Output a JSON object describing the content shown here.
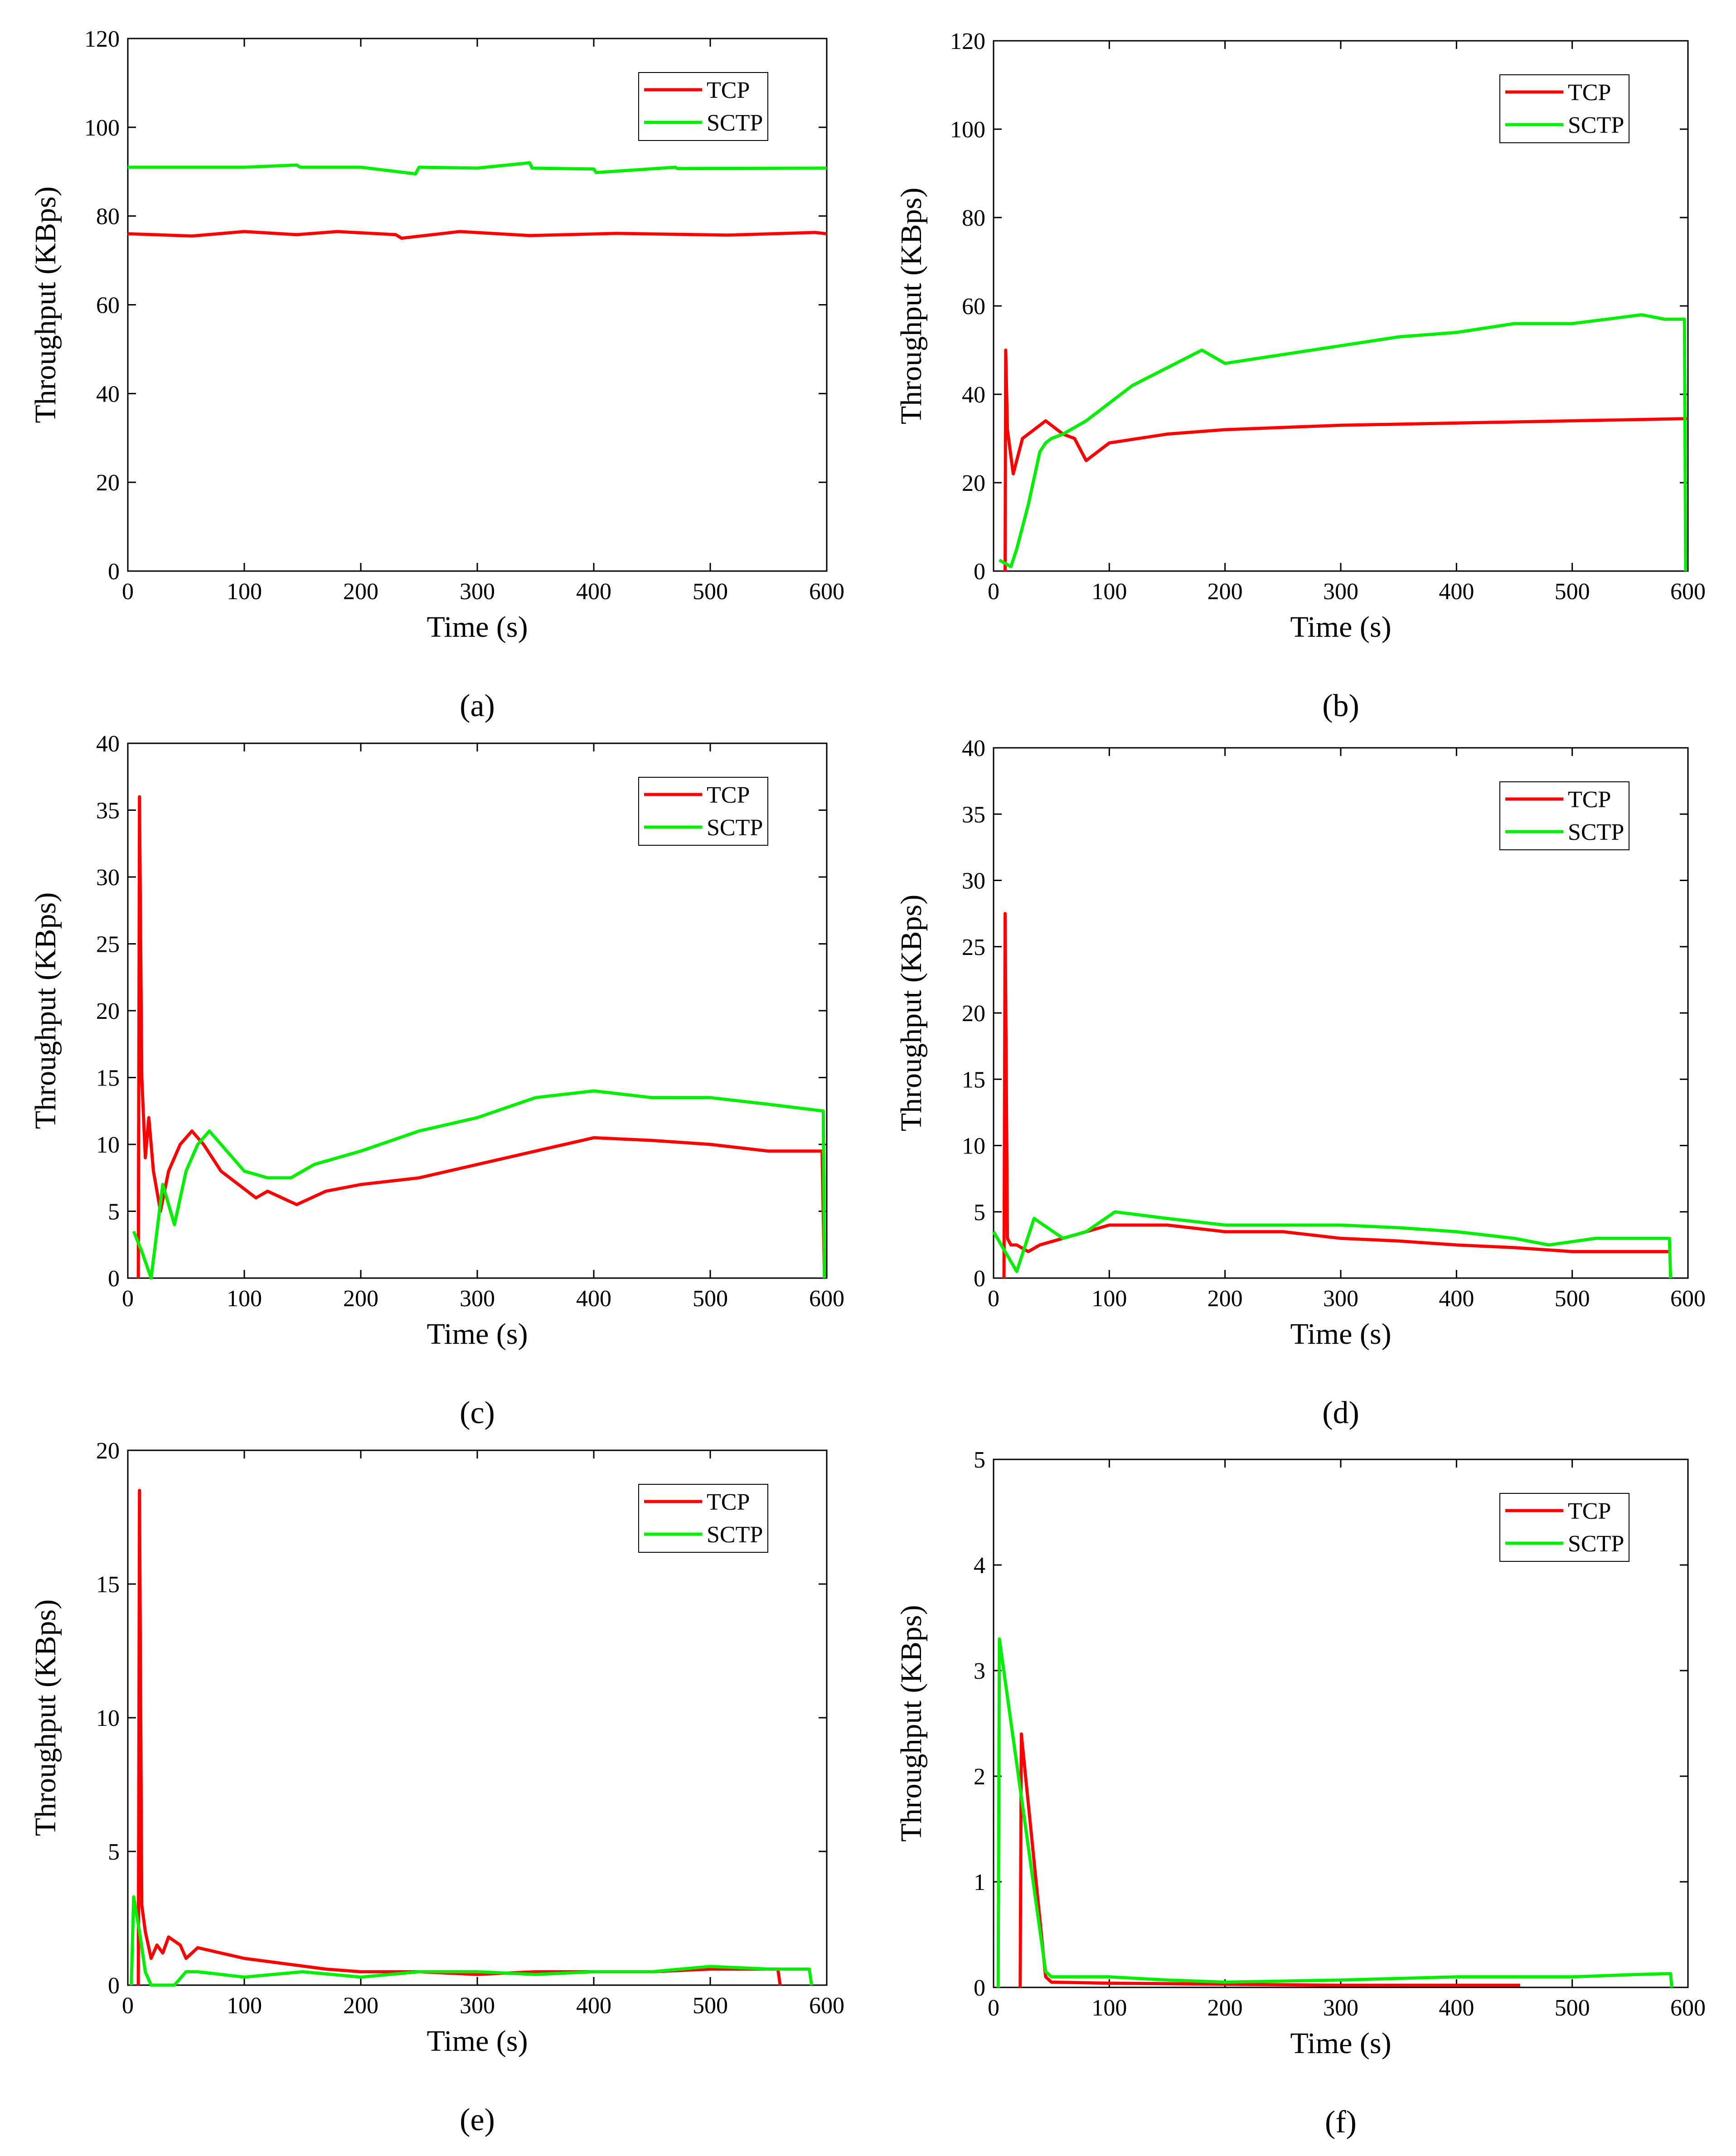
{
  "figure": {
    "colors": {
      "tcp": "#ff0000",
      "sctp": "#00ee00",
      "axis": "#000000",
      "background": "#ffffff"
    }
  },
  "chart_data": [
    {
      "type": "line",
      "panel_label": "(a)",
      "xlabel": "Time (s)",
      "ylabel": "Throughput (KBps)",
      "xlim": [
        0,
        600
      ],
      "ylim": [
        0,
        120
      ],
      "xticks": [
        0,
        100,
        200,
        300,
        400,
        500,
        600
      ],
      "yticks": [
        0,
        20,
        40,
        60,
        80,
        100,
        120
      ],
      "legend": [
        "TCP",
        "SCTP"
      ],
      "legend_position": "top-right",
      "series": [
        {
          "name": "TCP",
          "color": "#ff0000",
          "x": [
            0,
            55,
            100,
            145,
            180,
            230,
            235,
            285,
            345,
            420,
            515,
            590,
            600
          ],
          "y": [
            76,
            75.5,
            76.5,
            75.8,
            76.5,
            75.8,
            75,
            76.5,
            75.6,
            76.1,
            75.7,
            76.3,
            76
          ]
        },
        {
          "name": "SCTP",
          "color": "#00ee00",
          "x": [
            0,
            100,
            145,
            148,
            200,
            247,
            250,
            300,
            345,
            347,
            400,
            402,
            470,
            472,
            600
          ],
          "y": [
            91,
            91,
            91.5,
            91,
            91,
            89.5,
            91,
            90.8,
            92,
            90.8,
            90.6,
            89.8,
            91,
            90.7,
            90.8
          ]
        }
      ]
    },
    {
      "type": "line",
      "panel_label": "(b)",
      "xlabel": "Time (s)",
      "ylabel": "Throughput (KBps)",
      "xlim": [
        0,
        600
      ],
      "ylim": [
        0,
        120
      ],
      "xticks": [
        0,
        100,
        200,
        300,
        400,
        500,
        600
      ],
      "yticks": [
        0,
        20,
        40,
        60,
        80,
        100,
        120
      ],
      "legend": [
        "TCP",
        "SCTP"
      ],
      "legend_position": "top-right",
      "series": [
        {
          "name": "TCP",
          "color": "#ff0000",
          "x": [
            10,
            10.5,
            12,
            17,
            25,
            35,
            45,
            50,
            60,
            70,
            80,
            100,
            150,
            200,
            300,
            400,
            500,
            600
          ],
          "y": [
            0,
            50,
            32,
            22,
            30,
            32,
            34,
            33,
            31,
            30,
            25,
            29,
            31,
            32,
            33,
            33.5,
            34,
            34.5
          ]
        },
        {
          "name": "SCTP",
          "color": "#00ee00",
          "x": [
            5,
            15,
            20,
            30,
            40,
            45,
            50,
            60,
            80,
            100,
            120,
            150,
            180,
            200,
            250,
            300,
            350,
            400,
            450,
            500,
            560,
            580,
            597,
            598
          ],
          "y": [
            2.5,
            1,
            5,
            15,
            27,
            29,
            30,
            31,
            34,
            38,
            42,
            46,
            50,
            47,
            49,
            51,
            53,
            54,
            56,
            56,
            58,
            57,
            57,
            0
          ]
        }
      ]
    },
    {
      "type": "line",
      "panel_label": "(c)",
      "xlabel": "Time (s)",
      "ylabel": "Throughput (KBps)",
      "xlim": [
        0,
        600
      ],
      "ylim": [
        0,
        40
      ],
      "xticks": [
        0,
        100,
        200,
        300,
        400,
        500,
        600
      ],
      "yticks": [
        0,
        5,
        10,
        15,
        20,
        25,
        30,
        35,
        40
      ],
      "legend": [
        "TCP",
        "SCTP"
      ],
      "legend_position": "top-right",
      "series": [
        {
          "name": "TCP",
          "color": "#ff0000",
          "x": [
            9,
            10,
            12,
            15,
            18,
            22,
            28,
            35,
            45,
            55,
            65,
            80,
            110,
            120,
            145,
            170,
            200,
            250,
            300,
            350,
            400,
            450,
            500,
            550,
            596,
            598
          ],
          "y": [
            0,
            36,
            15,
            9,
            12,
            8,
            5,
            8,
            10,
            11,
            10,
            8,
            6,
            6.5,
            5.5,
            6.5,
            7,
            7.5,
            8.5,
            9.5,
            10.5,
            10.3,
            10,
            9.5,
            9.5,
            0
          ]
        },
        {
          "name": "SCTP",
          "color": "#00ee00",
          "x": [
            5,
            12,
            20,
            30,
            40,
            50,
            60,
            70,
            100,
            120,
            140,
            160,
            200,
            250,
            300,
            350,
            400,
            450,
            500,
            550,
            597,
            598
          ],
          "y": [
            3.5,
            2,
            0,
            7,
            4,
            8,
            10,
            11,
            8,
            7.5,
            7.5,
            8.5,
            9.5,
            11,
            12,
            13.5,
            14,
            13.5,
            13.5,
            13,
            12.5,
            0
          ]
        }
      ]
    },
    {
      "type": "line",
      "panel_label": "(d)",
      "xlabel": "Time (s)",
      "ylabel": "Throughput (KBps)",
      "xlim": [
        0,
        600
      ],
      "ylim": [
        0,
        40
      ],
      "xticks": [
        0,
        100,
        200,
        300,
        400,
        500,
        600
      ],
      "yticks": [
        0,
        5,
        10,
        15,
        20,
        25,
        30,
        35,
        40
      ],
      "legend": [
        "TCP",
        "SCTP"
      ],
      "legend_position": "top-right",
      "series": [
        {
          "name": "TCP",
          "color": "#ff0000",
          "x": [
            9,
            10,
            12,
            15,
            20,
            30,
            40,
            60,
            100,
            150,
            200,
            250,
            300,
            350,
            400,
            450,
            500,
            585
          ],
          "y": [
            0,
            27.5,
            3,
            2.5,
            2.5,
            2,
            2.5,
            3,
            4,
            4,
            3.5,
            3.5,
            3,
            2.8,
            2.5,
            2.3,
            2,
            2
          ]
        },
        {
          "name": "SCTP",
          "color": "#00ee00",
          "x": [
            0,
            10,
            20,
            35,
            60,
            80,
            105,
            150,
            200,
            250,
            300,
            350,
            400,
            450,
            480,
            520,
            580,
            584,
            585
          ],
          "y": [
            3.5,
            2,
            0.5,
            4.5,
            3,
            3.5,
            5,
            4.5,
            4,
            4,
            4,
            3.8,
            3.5,
            3,
            2.5,
            3,
            3,
            3,
            0
          ]
        }
      ]
    },
    {
      "type": "line",
      "panel_label": "(e)",
      "xlabel": "Time (s)",
      "ylabel": "Throughput (KBps)",
      "xlim": [
        0,
        600
      ],
      "ylim": [
        0,
        20
      ],
      "xticks": [
        0,
        100,
        200,
        300,
        400,
        500,
        600
      ],
      "yticks": [
        0,
        5,
        10,
        15,
        20
      ],
      "legend": [
        "TCP",
        "SCTP"
      ],
      "legend_position": "top-right",
      "series": [
        {
          "name": "TCP",
          "color": "#ff0000",
          "x": [
            9,
            10,
            12,
            15,
            20,
            25,
            30,
            35,
            45,
            50,
            60,
            100,
            170,
            200,
            250,
            300,
            350,
            400,
            450,
            500,
            558,
            560
          ],
          "y": [
            0,
            18.5,
            3,
            2,
            1,
            1.5,
            1.2,
            1.8,
            1.5,
            1,
            1.4,
            1,
            0.6,
            0.5,
            0.5,
            0.4,
            0.5,
            0.5,
            0.5,
            0.6,
            0.6,
            0
          ]
        },
        {
          "name": "SCTP",
          "color": "#00ee00",
          "x": [
            3,
            5,
            10,
            15,
            20,
            30,
            40,
            50,
            60,
            100,
            150,
            200,
            250,
            300,
            350,
            400,
            450,
            500,
            550,
            585,
            587
          ],
          "y": [
            0,
            3.3,
            2,
            0.5,
            0,
            0,
            0,
            0.5,
            0.5,
            0.3,
            0.5,
            0.3,
            0.5,
            0.5,
            0.4,
            0.5,
            0.5,
            0.7,
            0.6,
            0.6,
            0
          ]
        }
      ]
    },
    {
      "type": "line",
      "panel_label": "(f)",
      "xlabel": "Time (s)",
      "ylabel": "Throughput (KBps)",
      "xlim": [
        0,
        600
      ],
      "ylim": [
        0,
        5
      ],
      "xticks": [
        0,
        100,
        200,
        300,
        400,
        500,
        600
      ],
      "yticks": [
        0,
        1,
        2,
        3,
        4,
        5
      ],
      "legend": [
        "TCP",
        "SCTP"
      ],
      "legend_position": "top-right",
      "series": [
        {
          "name": "TCP",
          "color": "#ff0000",
          "x": [
            23,
            24,
            45,
            50,
            100,
            200,
            300,
            400,
            455
          ],
          "y": [
            0,
            2.4,
            0.1,
            0.05,
            0.04,
            0.03,
            0.02,
            0.02,
            0.02
          ]
        },
        {
          "name": "SCTP",
          "color": "#00ee00",
          "x": [
            4,
            5,
            45,
            50,
            100,
            150,
            200,
            300,
            400,
            500,
            550,
            580,
            585,
            586
          ],
          "y": [
            0,
            3.3,
            0.15,
            0.1,
            0.1,
            0.07,
            0.05,
            0.07,
            0.1,
            0.1,
            0.12,
            0.13,
            0.13,
            0
          ]
        }
      ]
    }
  ]
}
